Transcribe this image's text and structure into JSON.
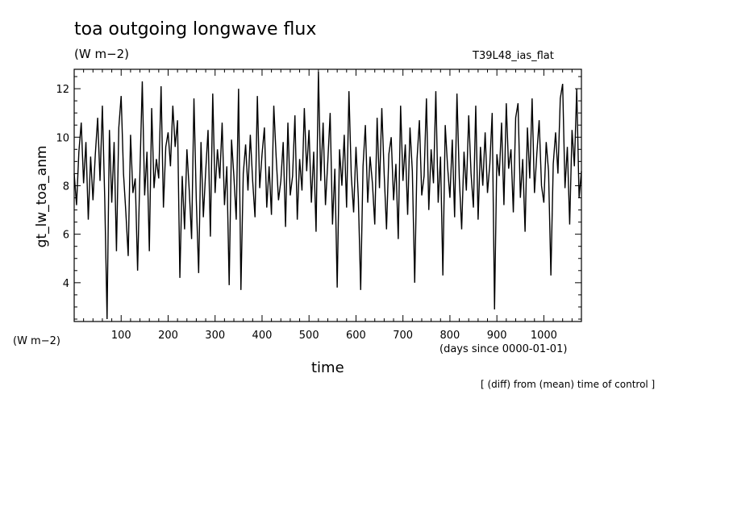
{
  "chart_data": {
    "type": "line",
    "title": "toa outgoing longwave flux",
    "subtitle": "(W m−2)",
    "run_label": "T39L48_ias_flat",
    "ylabel": "gt_lw_toa_anm",
    "y_units": "(W m−2)",
    "xlabel": "time",
    "x_units": "(days since 0000-01-01)",
    "note": "[ (diff) from (mean) time of control ]",
    "xlim": [
      0,
      1080
    ],
    "ylim": [
      2.4,
      12.8
    ],
    "x_ticks_labeled": [
      100,
      200,
      300,
      400,
      500,
      600,
      700,
      800,
      900,
      1000
    ],
    "y_ticks_labeled": [
      4,
      6,
      8,
      10,
      12
    ],
    "grid": false,
    "series_color": "#000000",
    "series": [
      {
        "x": [
          0,
          5,
          10,
          15,
          20,
          25,
          30,
          35,
          40,
          45,
          50,
          55,
          60,
          65,
          70,
          75,
          80,
          85,
          90,
          95,
          100,
          105,
          110,
          115,
          120,
          125,
          130,
          135,
          140,
          145,
          150,
          155,
          160,
          165,
          170,
          175,
          180,
          185,
          190,
          195,
          200,
          205,
          210,
          215,
          220,
          225,
          230,
          235,
          240,
          245,
          250,
          255,
          260,
          265,
          270,
          275,
          280,
          285,
          290,
          295,
          300,
          305,
          310,
          315,
          320,
          325,
          330,
          335,
          340,
          345,
          350,
          355,
          360,
          365,
          370,
          375,
          380,
          385,
          390,
          395,
          400,
          405,
          410,
          415,
          420,
          425,
          430,
          435,
          440,
          445,
          450,
          455,
          460,
          465,
          470,
          475,
          480,
          485,
          490,
          495,
          500,
          505,
          510,
          515,
          520,
          525,
          530,
          535,
          540,
          545,
          550,
          555,
          560,
          565,
          570,
          575,
          580,
          585,
          590,
          595,
          600,
          605,
          610,
          615,
          620,
          625,
          630,
          635,
          640,
          645,
          650,
          655,
          660,
          665,
          670,
          675,
          680,
          685,
          690,
          695,
          700,
          705,
          710,
          715,
          720,
          725,
          730,
          735,
          740,
          745,
          750,
          755,
          760,
          765,
          770,
          775,
          780,
          785,
          790,
          795,
          800,
          805,
          810,
          815,
          820,
          825,
          830,
          835,
          840,
          845,
          850,
          855,
          860,
          865,
          870,
          875,
          880,
          885,
          890,
          895,
          900,
          905,
          910,
          915,
          920,
          925,
          930,
          935,
          940,
          945,
          950,
          955,
          960,
          965,
          970,
          975,
          980,
          985,
          990,
          995,
          1000,
          1005,
          1010,
          1015,
          1020,
          1025,
          1030,
          1035,
          1040,
          1045,
          1050,
          1055,
          1060,
          1065,
          1070,
          1075,
          1080
        ],
        "y": [
          8.5,
          7.2,
          9.4,
          10.6,
          8.1,
          9.8,
          6.6,
          9.2,
          7.4,
          9.3,
          10.8,
          8.2,
          11.3,
          7.5,
          2.5,
          10.3,
          7.3,
          9.8,
          5.3,
          10.4,
          11.7,
          8.5,
          6.9,
          5.1,
          10.1,
          7.7,
          8.3,
          4.5,
          8.6,
          12.3,
          7.6,
          9.4,
          5.3,
          11.2,
          7.9,
          9.1,
          8.3,
          12.1,
          7.1,
          9.6,
          10.2,
          8.8,
          11.3,
          9.6,
          10.7,
          4.2,
          8.4,
          6.2,
          9.5,
          7.8,
          5.8,
          11.6,
          7.4,
          4.4,
          9.8,
          6.7,
          8.6,
          10.3,
          5.9,
          11.8,
          7.7,
          9.5,
          8.3,
          10.6,
          7.2,
          8.8,
          3.9,
          9.9,
          8.4,
          6.6,
          12.0,
          3.7,
          8.5,
          9.7,
          7.8,
          10.1,
          8.2,
          6.7,
          11.7,
          7.9,
          9.3,
          10.4,
          7.1,
          8.8,
          6.8,
          11.3,
          9.2,
          7.4,
          8.2,
          9.8,
          6.3,
          10.6,
          7.6,
          8.4,
          10.9,
          6.6,
          9.1,
          7.8,
          11.2,
          8.6,
          10.3,
          7.3,
          9.4,
          6.1,
          12.7,
          8.2,
          10.6,
          7.2,
          9.0,
          11.0,
          6.4,
          8.7,
          3.8,
          9.5,
          8.0,
          10.1,
          7.1,
          11.9,
          8.4,
          6.9,
          9.6,
          7.5,
          3.7,
          8.8,
          10.5,
          7.3,
          9.2,
          8.1,
          6.4,
          10.8,
          7.9,
          11.2,
          8.5,
          6.2,
          9.3,
          10.0,
          7.4,
          8.9,
          5.8,
          11.3,
          8.2,
          9.7,
          6.8,
          10.4,
          8.6,
          4.0,
          9.1,
          10.7,
          7.6,
          8.4,
          11.6,
          7.0,
          9.5,
          8.1,
          11.9,
          7.3,
          9.2,
          4.3,
          10.5,
          8.8,
          7.5,
          9.9,
          6.7,
          11.8,
          8.3,
          6.2,
          9.4,
          7.8,
          10.9,
          8.5,
          7.1,
          11.3,
          6.6,
          9.6,
          8.0,
          10.2,
          7.7,
          8.9,
          11.0,
          2.9,
          9.3,
          8.4,
          10.6,
          7.2,
          11.4,
          8.7,
          9.5,
          6.9,
          10.8,
          11.4,
          7.5,
          9.1,
          6.1,
          10.4,
          8.3,
          11.6,
          7.7,
          9.3,
          10.7,
          8.0,
          7.3,
          9.8,
          8.6,
          4.3,
          8.9,
          10.2,
          8.5,
          11.6,
          12.2,
          7.9,
          9.6,
          6.4,
          10.3,
          8.8,
          12.0,
          7.5,
          8.6
        ]
      }
    ]
  }
}
